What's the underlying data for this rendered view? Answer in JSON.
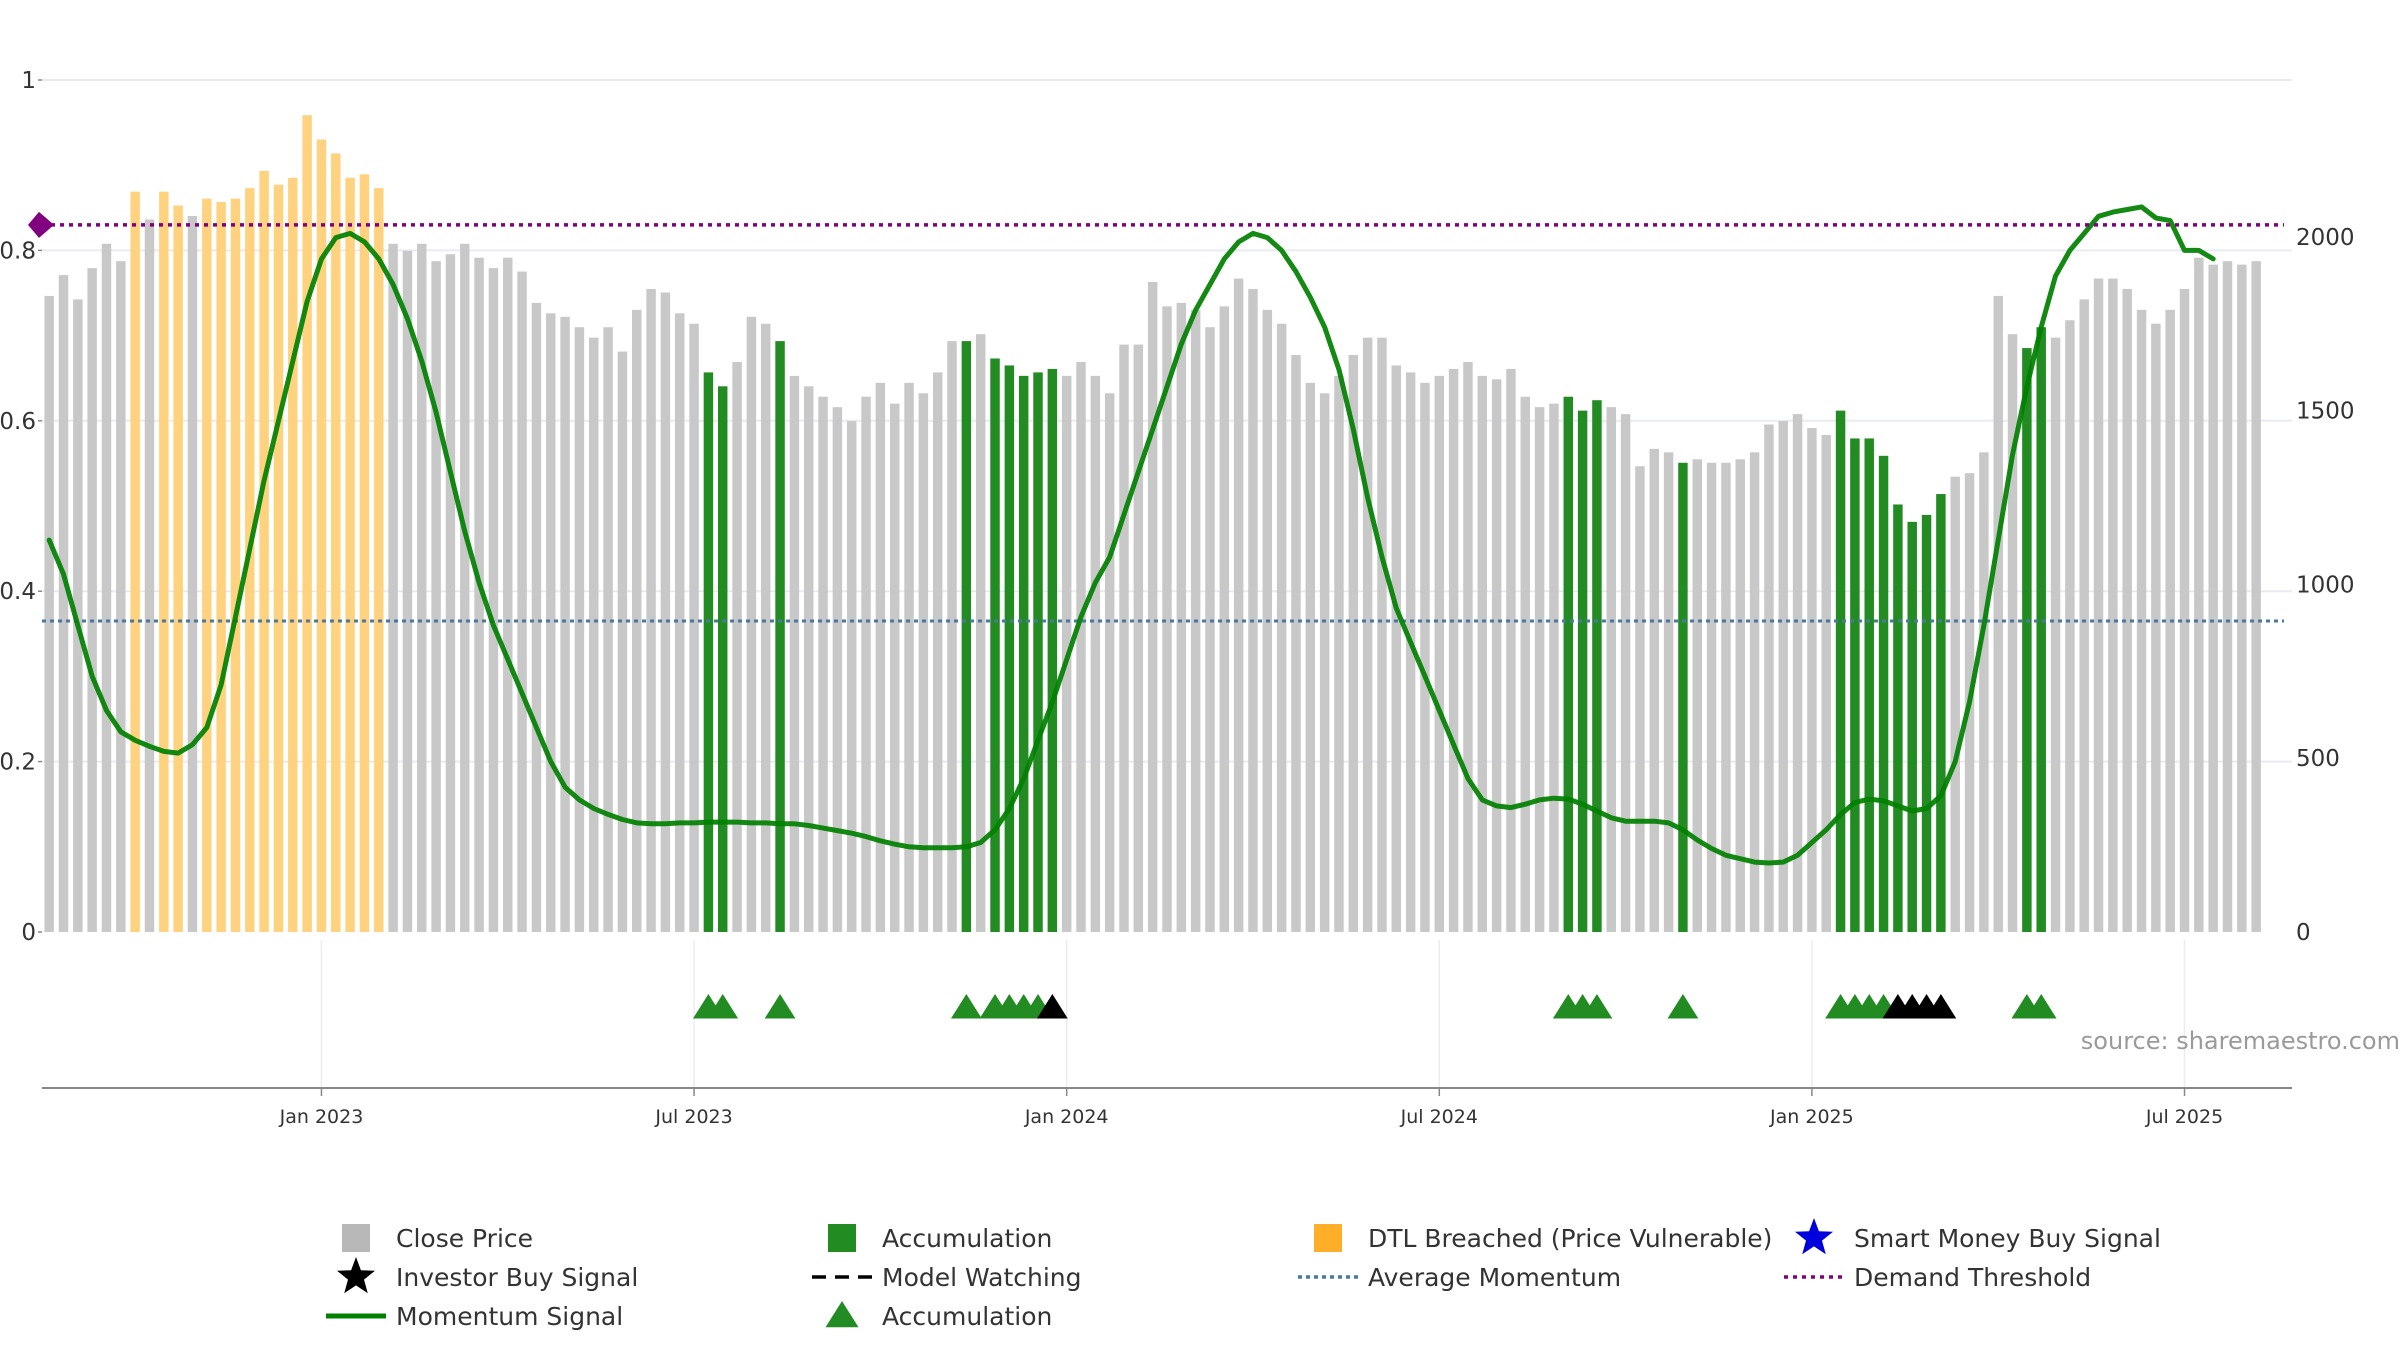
{
  "chart_data": {
    "type": "bar+line",
    "title": "",
    "source_note": "source: sharemaestro.com",
    "x_axis": {
      "tick_labels": [
        "Jan 2023",
        "Jul 2023",
        "Jan 2024",
        "Jul 2024",
        "Jan 2025",
        "Jul 2025"
      ],
      "tick_weeks": [
        19,
        45,
        71,
        97,
        123,
        149
      ],
      "start": "Oct 2022",
      "end": "Sep 2025",
      "bin": "week",
      "weeks": 157
    },
    "y_left": {
      "label": "",
      "min": 0,
      "max": 1,
      "tick_values": [
        0,
        0.2,
        0.4,
        0.6,
        0.8,
        1
      ],
      "tick_labels": [
        "0",
        "0.2",
        "0.4",
        "0.6",
        "0.8",
        "1"
      ]
    },
    "y_right": {
      "label": "",
      "min": 0,
      "max": 2480,
      "tick_values": [
        0,
        500,
        1000,
        1500,
        2000
      ],
      "tick_labels": [
        "0",
        "500",
        "1000",
        "1500",
        "2000"
      ]
    },
    "close_price": [
      1830,
      1890,
      1820,
      1910,
      1980,
      1930,
      2130,
      2050,
      2130,
      2090,
      2060,
      2110,
      2100,
      2110,
      2140,
      2190,
      2150,
      2170,
      2350,
      2280,
      2240,
      2170,
      2180,
      2140,
      1980,
      1960,
      1980,
      1930,
      1950,
      1980,
      1940,
      1910,
      1940,
      1900,
      1810,
      1780,
      1770,
      1740,
      1710,
      1740,
      1670,
      1790,
      1850,
      1840,
      1780,
      1750,
      1610,
      1570,
      1640,
      1770,
      1750,
      1700,
      1600,
      1570,
      1540,
      1510,
      1470,
      1540,
      1580,
      1520,
      1580,
      1550,
      1610,
      1700,
      1700,
      1720,
      1650,
      1630,
      1600,
      1610,
      1620,
      1600,
      1640,
      1600,
      1550,
      1690,
      1690,
      1870,
      1800,
      1810,
      1790,
      1740,
      1800,
      1880,
      1850,
      1790,
      1750,
      1660,
      1580,
      1550,
      1600,
      1660,
      1710,
      1710,
      1630,
      1610,
      1580,
      1600,
      1620,
      1640,
      1600,
      1590,
      1620,
      1540,
      1510,
      1520,
      1540,
      1500,
      1530,
      1510,
      1490,
      1340,
      1390,
      1380,
      1350,
      1360,
      1350,
      1350,
      1360,
      1380,
      1460,
      1470,
      1490,
      1450,
      1430,
      1500,
      1420,
      1420,
      1370,
      1230,
      1180,
      1200,
      1260,
      1310,
      1320,
      1380,
      1830,
      1720,
      1680,
      1740,
      1710,
      1760,
      1820,
      1880,
      1880,
      1850,
      1790,
      1750,
      1790,
      1850,
      1940,
      1920,
      1930,
      1920,
      1930
    ],
    "accumulation_weeks": [
      46,
      47,
      51,
      64,
      66,
      67,
      68,
      69,
      70,
      106,
      107,
      108,
      114,
      125,
      126,
      127,
      128,
      129,
      130,
      131,
      132,
      138,
      139
    ],
    "dtl_breached_weeks": [
      6,
      8,
      9,
      11,
      12,
      13,
      14,
      15,
      16,
      17,
      18,
      19,
      20,
      21,
      22,
      23
    ],
    "momentum_signal": [
      [
        0,
        0.46
      ],
      [
        1,
        0.42
      ],
      [
        2,
        0.36
      ],
      [
        3,
        0.3
      ],
      [
        4,
        0.26
      ],
      [
        5,
        0.235
      ],
      [
        6,
        0.225
      ],
      [
        7,
        0.218
      ],
      [
        8,
        0.212
      ],
      [
        9,
        0.21
      ],
      [
        10,
        0.22
      ],
      [
        11,
        0.24
      ],
      [
        12,
        0.29
      ],
      [
        13,
        0.37
      ],
      [
        14,
        0.45
      ],
      [
        15,
        0.53
      ],
      [
        16,
        0.6
      ],
      [
        17,
        0.67
      ],
      [
        18,
        0.74
      ],
      [
        19,
        0.79
      ],
      [
        20,
        0.815
      ],
      [
        21,
        0.82
      ],
      [
        22,
        0.81
      ],
      [
        23,
        0.79
      ],
      [
        24,
        0.76
      ],
      [
        25,
        0.72
      ],
      [
        26,
        0.67
      ],
      [
        27,
        0.61
      ],
      [
        28,
        0.54
      ],
      [
        29,
        0.47
      ],
      [
        30,
        0.41
      ],
      [
        31,
        0.36
      ],
      [
        32,
        0.32
      ],
      [
        33,
        0.28
      ],
      [
        34,
        0.24
      ],
      [
        35,
        0.2
      ],
      [
        36,
        0.17
      ],
      [
        37,
        0.155
      ],
      [
        38,
        0.145
      ],
      [
        39,
        0.138
      ],
      [
        40,
        0.132
      ],
      [
        41,
        0.128
      ],
      [
        42,
        0.127
      ],
      [
        43,
        0.127
      ],
      [
        44,
        0.128
      ],
      [
        45,
        0.128
      ],
      [
        46,
        0.129
      ],
      [
        47,
        0.129
      ],
      [
        48,
        0.129
      ],
      [
        49,
        0.128
      ],
      [
        50,
        0.128
      ],
      [
        51,
        0.127
      ],
      [
        52,
        0.127
      ],
      [
        53,
        0.125
      ],
      [
        54,
        0.122
      ],
      [
        55,
        0.119
      ],
      [
        56,
        0.116
      ],
      [
        57,
        0.112
      ],
      [
        58,
        0.107
      ],
      [
        59,
        0.103
      ],
      [
        60,
        0.1
      ],
      [
        61,
        0.099
      ],
      [
        62,
        0.099
      ],
      [
        63,
        0.099
      ],
      [
        64,
        0.1
      ],
      [
        65,
        0.105
      ],
      [
        66,
        0.12
      ],
      [
        67,
        0.145
      ],
      [
        68,
        0.18
      ],
      [
        69,
        0.225
      ],
      [
        70,
        0.27
      ],
      [
        71,
        0.32
      ],
      [
        72,
        0.37
      ],
      [
        73,
        0.41
      ],
      [
        74,
        0.44
      ],
      [
        75,
        0.49
      ],
      [
        76,
        0.54
      ],
      [
        77,
        0.59
      ],
      [
        78,
        0.64
      ],
      [
        79,
        0.69
      ],
      [
        80,
        0.73
      ],
      [
        81,
        0.76
      ],
      [
        82,
        0.79
      ],
      [
        83,
        0.81
      ],
      [
        84,
        0.82
      ],
      [
        85,
        0.815
      ],
      [
        86,
        0.8
      ],
      [
        87,
        0.775
      ],
      [
        88,
        0.745
      ],
      [
        89,
        0.71
      ],
      [
        90,
        0.66
      ],
      [
        91,
        0.59
      ],
      [
        92,
        0.51
      ],
      [
        93,
        0.44
      ],
      [
        94,
        0.38
      ],
      [
        95,
        0.34
      ],
      [
        96,
        0.3
      ],
      [
        97,
        0.26
      ],
      [
        98,
        0.22
      ],
      [
        99,
        0.18
      ],
      [
        100,
        0.155
      ],
      [
        101,
        0.148
      ],
      [
        102,
        0.146
      ],
      [
        103,
        0.15
      ],
      [
        104,
        0.155
      ],
      [
        105,
        0.157
      ],
      [
        106,
        0.156
      ],
      [
        107,
        0.15
      ],
      [
        108,
        0.142
      ],
      [
        109,
        0.134
      ],
      [
        110,
        0.13
      ],
      [
        111,
        0.13
      ],
      [
        112,
        0.13
      ],
      [
        113,
        0.128
      ],
      [
        114,
        0.12
      ],
      [
        115,
        0.108
      ],
      [
        116,
        0.098
      ],
      [
        117,
        0.09
      ],
      [
        118,
        0.086
      ],
      [
        119,
        0.082
      ],
      [
        120,
        0.081
      ],
      [
        121,
        0.082
      ],
      [
        122,
        0.09
      ],
      [
        123,
        0.105
      ],
      [
        124,
        0.12
      ],
      [
        125,
        0.138
      ],
      [
        126,
        0.152
      ],
      [
        127,
        0.156
      ],
      [
        128,
        0.154
      ],
      [
        129,
        0.148
      ],
      [
        130,
        0.142
      ],
      [
        131,
        0.145
      ],
      [
        132,
        0.16
      ],
      [
        133,
        0.2
      ],
      [
        134,
        0.27
      ],
      [
        135,
        0.36
      ],
      [
        136,
        0.46
      ],
      [
        137,
        0.56
      ],
      [
        138,
        0.64
      ],
      [
        139,
        0.71
      ],
      [
        140,
        0.77
      ],
      [
        141,
        0.8
      ],
      [
        142,
        0.82
      ],
      [
        143,
        0.84
      ],
      [
        144,
        0.845
      ],
      [
        145,
        0.848
      ],
      [
        146,
        0.851
      ],
      [
        147,
        0.838
      ],
      [
        148,
        0.835
      ],
      [
        149,
        0.8
      ],
      [
        150,
        0.8
      ],
      [
        151,
        0.79
      ]
    ],
    "average_momentum": 0.365,
    "demand_threshold": 0.83,
    "accumulation_markers": [
      46,
      47,
      51,
      64,
      66,
      67,
      68,
      69,
      106,
      107,
      108,
      114,
      125,
      126,
      127,
      128,
      138,
      139
    ],
    "investor_buy_signals": [
      70,
      129,
      130,
      131,
      132
    ],
    "smart_money_buy_signals": []
  },
  "legend": {
    "close_price": "Close Price",
    "accumulation_bar": "Accumulation",
    "dtl_breached": "DTL Breached (Price Vulnerable)",
    "smart_money": "Smart Money Buy Signal",
    "investor_buy": "Investor Buy Signal",
    "model_watching": "Model Watching",
    "average_momentum": "Average Momentum",
    "demand_threshold": "Demand Threshold",
    "momentum_signal": "Momentum Signal",
    "accumulation_marker": "Accumulation"
  },
  "colors": {
    "close_price": "#c8c8c8",
    "accumulation": "#228B22",
    "dtl_breached": "#FFD27F",
    "momentum": "#008000",
    "average_momentum": "#4a78a0",
    "demand_threshold": "#800080",
    "investor_buy": "#000000",
    "smart_money": "#0000dd",
    "model_watching": "#000000",
    "axis": "#888888",
    "grid": "#e8ecf2"
  }
}
